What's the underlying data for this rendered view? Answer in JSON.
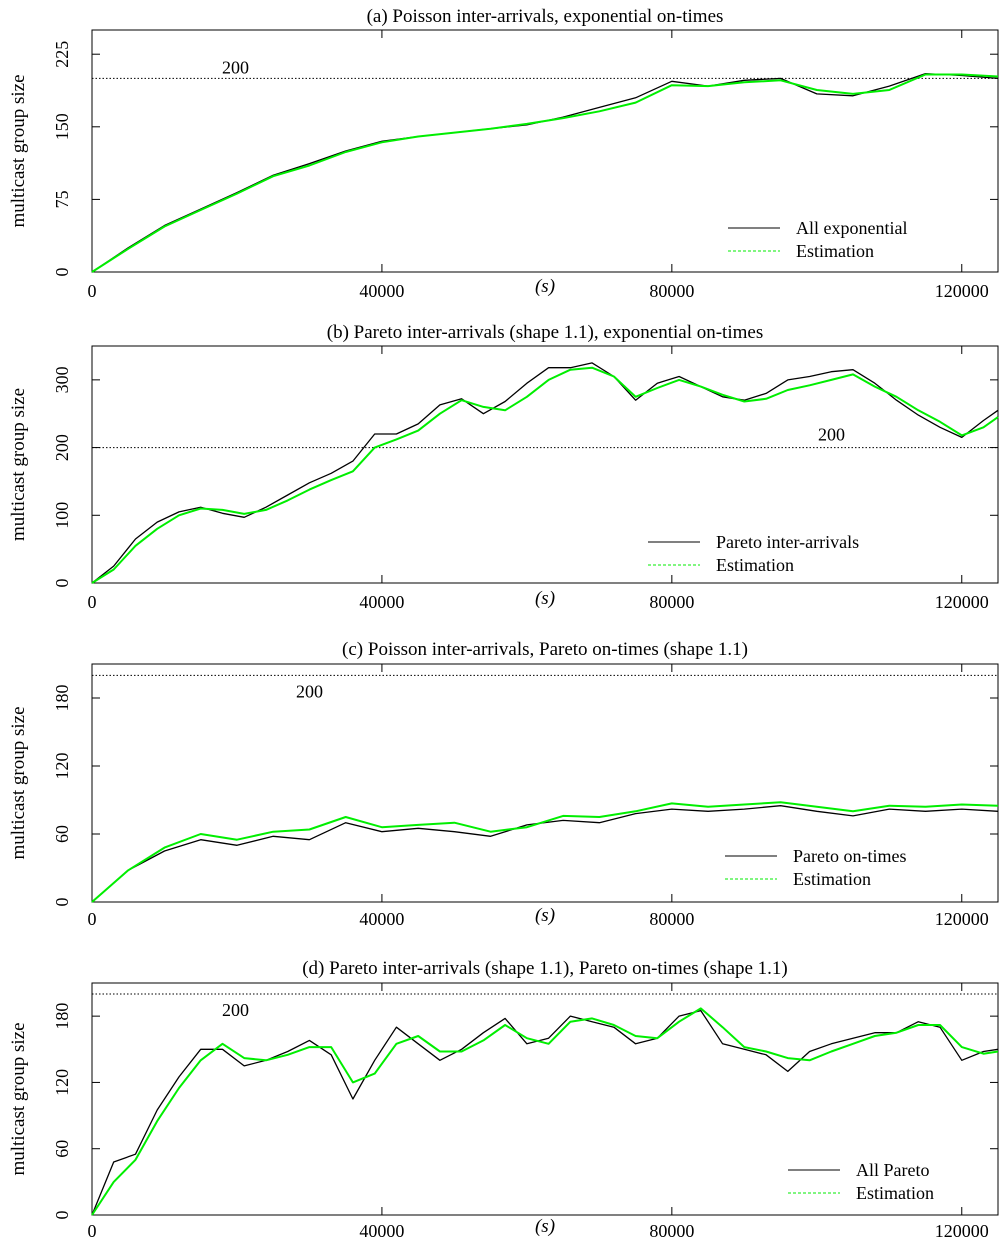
{
  "colors": {
    "primary_series": "#000000",
    "estimation_series": "#00ee00",
    "reference_line": "#000000",
    "frame": "#000000",
    "background": "#ffffff"
  },
  "chart_data": [
    {
      "type": "line",
      "title": "(a) Poisson inter-arrivals, exponential on-times",
      "xlabel": "(s)",
      "ylabel": "multicast group size",
      "xlim": [
        0,
        125000
      ],
      "ylim": [
        0,
        250
      ],
      "xticks": [
        0,
        40000,
        80000,
        120000
      ],
      "yticks": [
        0,
        75,
        150,
        225
      ],
      "reference": {
        "value": 200,
        "label": "200"
      },
      "legend_position": "bottom-right",
      "x": [
        0,
        5000,
        10000,
        15000,
        20000,
        25000,
        30000,
        35000,
        40000,
        45000,
        50000,
        55000,
        60000,
        65000,
        70000,
        75000,
        80000,
        85000,
        90000,
        95000,
        100000,
        105000,
        110000,
        115000,
        120000,
        125000
      ],
      "series": [
        {
          "name": "All exponential",
          "values": [
            0,
            25,
            48,
            65,
            82,
            100,
            112,
            125,
            135,
            140,
            144,
            148,
            152,
            160,
            170,
            180,
            197,
            192,
            198,
            200,
            184,
            182,
            192,
            205,
            203,
            200
          ]
        },
        {
          "name": "Estimation",
          "values": [
            0,
            24,
            47,
            64,
            81,
            99,
            110,
            124,
            134,
            140,
            144,
            148,
            153,
            159,
            166,
            175,
            193,
            192,
            196,
            198,
            188,
            184,
            188,
            204,
            204,
            202
          ]
        }
      ]
    },
    {
      "type": "line",
      "title": "(b) Pareto inter-arrivals (shape 1.1), exponential on-times",
      "xlabel": "(s)",
      "ylabel": "multicast group size",
      "xlim": [
        0,
        125000
      ],
      "ylim": [
        0,
        350
      ],
      "xticks": [
        0,
        40000,
        80000,
        120000
      ],
      "yticks": [
        0,
        100,
        200,
        300
      ],
      "reference": {
        "value": 200,
        "label": "200"
      },
      "legend_position": "bottom-right",
      "x": [
        0,
        3000,
        6000,
        9000,
        12000,
        15000,
        18000,
        21000,
        24000,
        27000,
        30000,
        33000,
        36000,
        39000,
        42000,
        45000,
        48000,
        51000,
        54000,
        57000,
        60000,
        63000,
        66000,
        69000,
        72000,
        75000,
        78000,
        81000,
        84000,
        87000,
        90000,
        93000,
        96000,
        99000,
        102000,
        105000,
        108000,
        111000,
        114000,
        117000,
        120000,
        123000,
        125000
      ],
      "series": [
        {
          "name": "Pareto inter-arrivals",
          "values": [
            0,
            25,
            65,
            90,
            105,
            112,
            103,
            97,
            112,
            130,
            148,
            162,
            180,
            220,
            220,
            235,
            263,
            272,
            250,
            268,
            295,
            318,
            318,
            325,
            305,
            270,
            295,
            305,
            290,
            275,
            270,
            280,
            300,
            305,
            312,
            315,
            295,
            270,
            248,
            230,
            215,
            240,
            255
          ]
        },
        {
          "name": "Estimation",
          "values": [
            0,
            20,
            55,
            80,
            100,
            110,
            108,
            102,
            108,
            122,
            138,
            152,
            165,
            200,
            212,
            225,
            250,
            270,
            260,
            255,
            275,
            300,
            315,
            318,
            305,
            275,
            288,
            300,
            290,
            278,
            268,
            272,
            285,
            292,
            300,
            308,
            290,
            275,
            255,
            238,
            218,
            230,
            245
          ]
        }
      ]
    },
    {
      "type": "line",
      "title": "(c) Poisson inter-arrivals, Pareto on-times (shape 1.1)",
      "xlabel": "(s)",
      "ylabel": "multicast group size",
      "xlim": [
        0,
        125000
      ],
      "ylim": [
        0,
        210
      ],
      "xticks": [
        0,
        40000,
        80000,
        120000
      ],
      "yticks": [
        0,
        60,
        120,
        180
      ],
      "reference": {
        "value": 200,
        "label": "200"
      },
      "legend_position": "bottom-right",
      "x": [
        0,
        5000,
        10000,
        15000,
        20000,
        25000,
        30000,
        35000,
        40000,
        45000,
        50000,
        55000,
        60000,
        65000,
        70000,
        75000,
        80000,
        85000,
        90000,
        95000,
        100000,
        105000,
        110000,
        115000,
        120000,
        125000
      ],
      "series": [
        {
          "name": "Pareto on-times",
          "values": [
            0,
            28,
            45,
            55,
            50,
            58,
            55,
            70,
            62,
            65,
            62,
            58,
            68,
            72,
            70,
            78,
            82,
            80,
            82,
            85,
            80,
            76,
            82,
            80,
            82,
            80
          ]
        },
        {
          "name": "Estimation",
          "values": [
            0,
            28,
            48,
            60,
            55,
            62,
            64,
            75,
            66,
            68,
            70,
            62,
            66,
            76,
            75,
            80,
            87,
            84,
            86,
            88,
            84,
            80,
            85,
            84,
            86,
            85
          ]
        }
      ]
    },
    {
      "type": "line",
      "title": "(d) Pareto inter-arrivals (shape 1.1), Pareto on-times (shape 1.1)",
      "xlabel": "(s)",
      "ylabel": "multicast group size",
      "xlim": [
        0,
        125000
      ],
      "ylim": [
        0,
        210
      ],
      "xticks": [
        0,
        40000,
        80000,
        120000
      ],
      "yticks": [
        0,
        60,
        120,
        180
      ],
      "reference": {
        "value": 200,
        "label": "200"
      },
      "legend_position": "bottom-right",
      "x": [
        0,
        3000,
        6000,
        9000,
        12000,
        15000,
        18000,
        21000,
        24000,
        27000,
        30000,
        33000,
        36000,
        39000,
        42000,
        45000,
        48000,
        51000,
        54000,
        57000,
        60000,
        63000,
        66000,
        69000,
        72000,
        75000,
        78000,
        81000,
        84000,
        87000,
        90000,
        93000,
        96000,
        99000,
        102000,
        105000,
        108000,
        111000,
        114000,
        117000,
        120000,
        123000,
        125000
      ],
      "series": [
        {
          "name": "All Pareto",
          "values": [
            0,
            48,
            55,
            95,
            125,
            150,
            150,
            135,
            140,
            148,
            158,
            145,
            105,
            140,
            170,
            155,
            140,
            150,
            165,
            178,
            155,
            160,
            180,
            175,
            170,
            155,
            160,
            180,
            185,
            155,
            150,
            145,
            130,
            148,
            155,
            160,
            165,
            165,
            175,
            170,
            140,
            148,
            150
          ]
        },
        {
          "name": "Estimation",
          "values": [
            0,
            30,
            50,
            85,
            115,
            140,
            155,
            142,
            140,
            145,
            152,
            152,
            120,
            128,
            155,
            162,
            148,
            148,
            158,
            172,
            160,
            155,
            175,
            178,
            172,
            162,
            160,
            175,
            187,
            170,
            152,
            148,
            142,
            140,
            148,
            155,
            162,
            165,
            172,
            172,
            152,
            146,
            148
          ]
        }
      ]
    }
  ]
}
